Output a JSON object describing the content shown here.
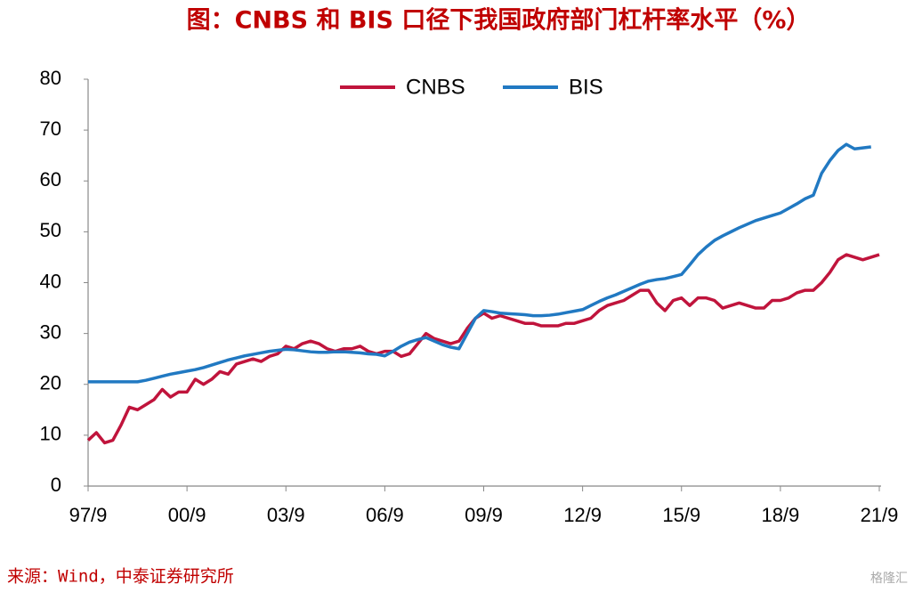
{
  "chart_data": {
    "type": "line",
    "title": "图：CNBS 和 BIS 口径下我国政府部门杠杆率水平（%）",
    "source": "来源：Wind，中泰证券研究所",
    "watermark": "格隆汇",
    "categories": [
      "97/9",
      null,
      null,
      null,
      null,
      null,
      null,
      null,
      null,
      null,
      null,
      null,
      "00/9",
      null,
      null,
      null,
      null,
      null,
      null,
      null,
      null,
      null,
      null,
      null,
      "03/9",
      null,
      null,
      null,
      null,
      null,
      null,
      null,
      null,
      null,
      null,
      null,
      "06/9",
      null,
      null,
      null,
      null,
      null,
      null,
      null,
      null,
      null,
      null,
      null,
      "09/9",
      null,
      null,
      null,
      null,
      null,
      null,
      null,
      null,
      null,
      null,
      null,
      "12/9",
      null,
      null,
      null,
      null,
      null,
      null,
      null,
      null,
      null,
      null,
      null,
      "15/9",
      null,
      null,
      null,
      null,
      null,
      null,
      null,
      null,
      null,
      null,
      null,
      "18/9",
      null,
      null,
      null,
      null,
      null,
      null,
      null,
      null,
      null,
      null,
      null,
      "21/9"
    ],
    "series": [
      {
        "name": "CNBS",
        "color": "#c0143c",
        "values": [
          9,
          10.5,
          8.5,
          9,
          12,
          15.5,
          15,
          16,
          17,
          19,
          17.5,
          18.5,
          18.5,
          21,
          20,
          21,
          22.5,
          22,
          24,
          24.5,
          25,
          24.5,
          25.5,
          26,
          27.5,
          27,
          28,
          28.5,
          28,
          27,
          26.5,
          27,
          27,
          27.5,
          26.5,
          26,
          26.5,
          26.5,
          25.5,
          26,
          28,
          30,
          29,
          28.5,
          28,
          28.5,
          31,
          33,
          34,
          33,
          33.5,
          33,
          32.5,
          32,
          32,
          31.5,
          31.5,
          31.5,
          32,
          32,
          32.5,
          33,
          34.5,
          35.5,
          36,
          36.5,
          37.5,
          38.5,
          38.5,
          36,
          34.5,
          36.5,
          37,
          35.5,
          37,
          37,
          36.5,
          35,
          35.5,
          36,
          35.5,
          35,
          35,
          36.5,
          36.5,
          37,
          38,
          38.5,
          38.5,
          40,
          42,
          44.5,
          45.5,
          45,
          44.5,
          45,
          45.5
        ]
      },
      {
        "name": "BIS",
        "color": "#2179c2",
        "values": [
          20.5,
          20.5,
          20.5,
          20.5,
          20.5,
          20.5,
          20.5,
          20.8,
          21.2,
          21.6,
          22,
          22.3,
          22.6,
          22.9,
          23.3,
          23.8,
          24.3,
          24.8,
          25.2,
          25.6,
          25.9,
          26.2,
          26.5,
          26.7,
          26.9,
          26.8,
          26.6,
          26.4,
          26.3,
          26.3,
          26.4,
          26.4,
          26.3,
          26.2,
          26,
          25.9,
          25.6,
          26.5,
          27.5,
          28.3,
          28.8,
          29.2,
          28.5,
          27.8,
          27.3,
          27,
          30,
          33,
          34.5,
          34.3,
          34,
          33.9,
          33.8,
          33.7,
          33.5,
          33.5,
          33.6,
          33.8,
          34.1,
          34.4,
          34.7,
          35.5,
          36.3,
          37,
          37.6,
          38.3,
          39,
          39.7,
          40.3,
          40.6,
          40.8,
          41.2,
          41.6,
          43.5,
          45.5,
          47,
          48.3,
          49.2,
          50,
          50.8,
          51.5,
          52.2,
          52.7,
          53.2,
          53.7,
          54.6,
          55.5,
          56.5,
          57.2,
          61.5,
          64,
          66,
          67.2,
          66.3,
          66.5,
          66.7,
          null
        ]
      }
    ],
    "ylim": [
      0,
      80
    ],
    "yticks": [
      0,
      10,
      20,
      30,
      40,
      50,
      60,
      70,
      80
    ],
    "grid": false,
    "legend": "top"
  }
}
